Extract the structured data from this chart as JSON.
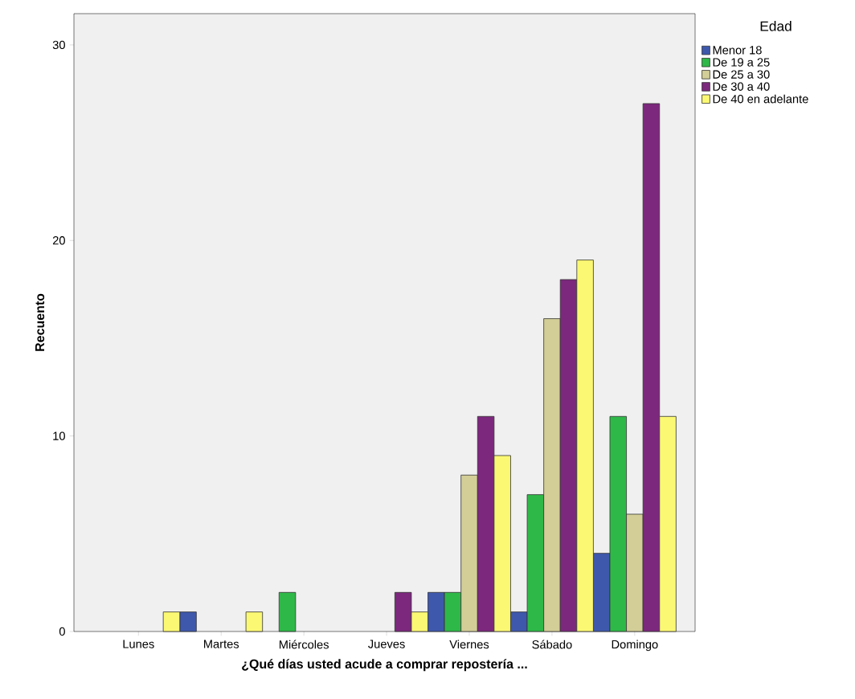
{
  "chart_data": {
    "type": "bar",
    "xlabel": "¿Qué días usted acude a comprar repostería ...",
    "ylabel": "Recuento",
    "legend_title": "Edad",
    "legend": "right",
    "categories": [
      "Lunes",
      "Martes",
      "Miércoles",
      "Jueves",
      "Viernes",
      "Sábado",
      "Domingo"
    ],
    "series": [
      {
        "name": "Menor 18",
        "color": "#3e58ac",
        "values": [
          null,
          1,
          null,
          null,
          2,
          1,
          4
        ]
      },
      {
        "name": "De 19 a 25",
        "color": "#2eb848",
        "values": [
          null,
          null,
          2,
          null,
          2,
          7,
          11
        ]
      },
      {
        "name": "De 25 a 30",
        "color": "#d3ce97",
        "values": [
          null,
          null,
          null,
          null,
          8,
          16,
          6
        ]
      },
      {
        "name": "De 30 a 40",
        "color": "#7c287d",
        "values": [
          null,
          null,
          null,
          2,
          11,
          18,
          27
        ]
      },
      {
        "name": "De 40 en adelante",
        "color": "#fbf873",
        "values": [
          1,
          1,
          null,
          1,
          9,
          19,
          11
        ]
      }
    ],
    "ylim": [
      0,
      31.6
    ],
    "yticks": [
      0,
      10,
      20,
      30
    ]
  }
}
